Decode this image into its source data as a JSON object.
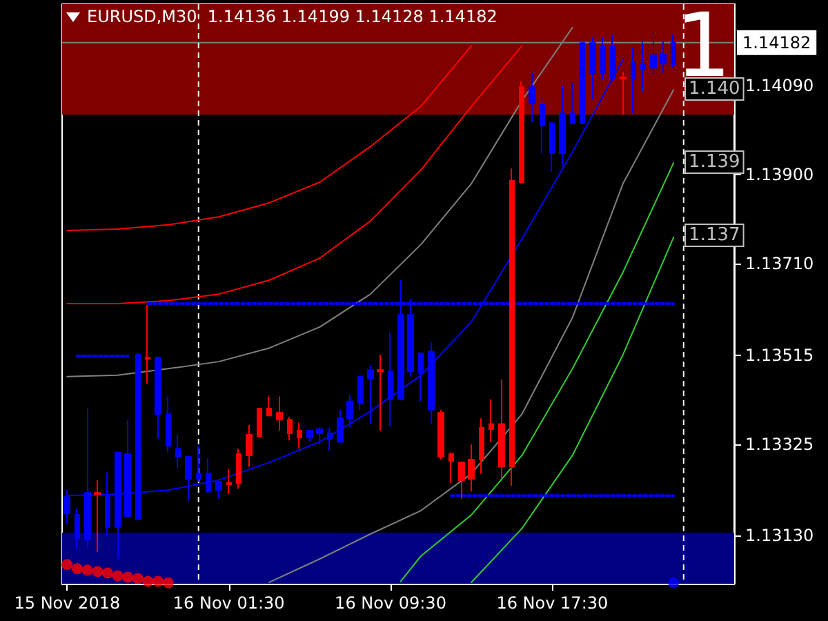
{
  "chart_data": {
    "type": "candlestick",
    "title": "EURUSD,M30  1.14136 1.14199 1.14128 1.14182",
    "x": [
      "2018-11-15T17:30",
      "2018-11-15T18:00",
      "2018-11-15T18:30",
      "2018-11-15T19:00",
      "2018-11-15T19:30",
      "2018-11-15T20:00",
      "2018-11-15T20:30",
      "2018-11-15T21:00",
      "2018-11-15T21:30",
      "2018-11-15T22:00",
      "2018-11-15T22:30",
      "2018-11-15T23:00",
      "2018-11-15T23:30",
      "2018-11-16T00:00",
      "2018-11-16T00:30",
      "2018-11-16T01:00",
      "2018-11-16T01:30",
      "2018-11-16T02:00",
      "2018-11-16T02:30",
      "2018-11-16T03:00",
      "2018-11-16T03:30",
      "2018-11-16T04:00",
      "2018-11-16T04:30",
      "2018-11-16T05:00",
      "2018-11-16T05:30",
      "2018-11-16T06:00",
      "2018-11-16T06:30",
      "2018-11-16T07:00",
      "2018-11-16T07:30",
      "2018-11-16T08:00",
      "2018-11-16T08:30",
      "2018-11-16T09:00",
      "2018-11-16T09:30",
      "2018-11-16T10:00",
      "2018-11-16T10:30",
      "2018-11-16T11:00",
      "2018-11-16T11:30",
      "2018-11-16T12:00",
      "2018-11-16T12:30",
      "2018-11-16T13:00",
      "2018-11-16T13:30",
      "2018-11-16T14:00",
      "2018-11-16T14:30",
      "2018-11-16T15:00",
      "2018-11-16T15:30",
      "2018-11-16T16:00",
      "2018-11-16T16:30",
      "2018-11-16T17:00",
      "2018-11-16T17:30",
      "2018-11-16T18:00",
      "2018-11-16T18:30",
      "2018-11-16T19:00",
      "2018-11-16T19:30",
      "2018-11-16T20:00",
      "2018-11-16T20:30",
      "2018-11-16T21:00",
      "2018-11-16T21:30",
      "2018-11-16T22:00",
      "2018-11-16T22:30",
      "2018-11-16T23:00",
      "2018-11-16T23:30"
    ],
    "ohlc": [
      [
        1.13177,
        1.13227,
        1.13154,
        1.13212
      ],
      [
        1.13124,
        1.13189,
        1.131,
        1.13174
      ],
      [
        1.13121,
        1.13401,
        1.13103,
        1.13221
      ],
      [
        1.13221,
        1.13248,
        1.13095,
        1.13218
      ],
      [
        1.13148,
        1.13265,
        1.1313,
        1.13215
      ],
      [
        1.13148,
        1.13307,
        1.1308,
        1.13307
      ],
      [
        1.13171,
        1.13377,
        1.13168,
        1.13304
      ],
      [
        1.13165,
        1.13519,
        1.13162,
        1.13516
      ],
      [
        1.1351,
        1.13622,
        1.13454,
        1.13507
      ],
      [
        1.13389,
        1.1351,
        1.13336,
        1.1351
      ],
      [
        1.13321,
        1.13427,
        1.13307,
        1.13389
      ],
      [
        1.13298,
        1.13345,
        1.13274,
        1.13315
      ],
      [
        1.13251,
        1.13298,
        1.13204,
        1.13298
      ],
      [
        1.13251,
        1.13321,
        1.13245,
        1.13262
      ],
      [
        1.13224,
        1.13295,
        1.13221,
        1.13262
      ],
      [
        1.13227,
        1.13245,
        1.13209,
        1.13245
      ],
      [
        1.13242,
        1.13271,
        1.13218,
        1.13239
      ],
      [
        1.13304,
        1.13315,
        1.1323,
        1.13242
      ],
      [
        1.13345,
        1.13366,
        1.13277,
        1.13301
      ],
      [
        1.13401,
        1.13401,
        1.13342,
        1.13342
      ],
      [
        1.13401,
        1.13427,
        1.13386,
        1.13386
      ],
      [
        1.13392,
        1.13427,
        1.13354,
        1.13377
      ],
      [
        1.13377,
        1.13383,
        1.13333,
        1.13348
      ],
      [
        1.13354,
        1.13371,
        1.13315,
        1.13339
      ],
      [
        1.13339,
        1.13354,
        1.1333,
        1.13354
      ],
      [
        1.13348,
        1.1336,
        1.13324,
        1.13357
      ],
      [
        1.13336,
        1.1336,
        1.1331,
        1.13348
      ],
      [
        1.1333,
        1.13398,
        1.13327,
        1.1338
      ],
      [
        1.1338,
        1.1343,
        1.1336,
        1.13416
      ],
      [
        1.13413,
        1.13469,
        1.13398,
        1.13469
      ],
      [
        1.13466,
        1.13492,
        1.13368,
        1.13483
      ],
      [
        1.13483,
        1.13516,
        1.13354,
        1.1348
      ],
      [
        1.13421,
        1.13563,
        1.13363,
        1.1348
      ],
      [
        1.13421,
        1.13675,
        1.13419,
        1.13601
      ],
      [
        1.1348,
        1.13634,
        1.13469,
        1.13601
      ],
      [
        1.13477,
        1.13519,
        1.13416,
        1.13519
      ],
      [
        1.13398,
        1.13542,
        1.13368,
        1.13522
      ],
      [
        1.13392,
        1.13398,
        1.13292,
        1.13298
      ],
      [
        1.13304,
        1.13307,
        1.13242,
        1.13289
      ],
      [
        1.13286,
        1.13286,
        1.13209,
        1.13248
      ],
      [
        1.13292,
        1.13324,
        1.13224,
        1.13251
      ],
      [
        1.1336,
        1.1338,
        1.13262,
        1.13292
      ],
      [
        1.13368,
        1.13421,
        1.1333,
        1.13357
      ],
      [
        1.13368,
        1.13463,
        1.13251,
        1.13277
      ],
      [
        1.13887,
        1.13913,
        1.13236,
        1.13277
      ],
      [
        1.14087,
        1.14099,
        1.13881,
        1.13884
      ],
      [
        1.14052,
        1.14117,
        1.14013,
        1.14087
      ],
      [
        1.14005,
        1.14061,
        1.13946,
        1.14049
      ],
      [
        1.13946,
        1.1401,
        1.13907,
        1.1401
      ],
      [
        1.13946,
        1.1409,
        1.13919,
        1.14031
      ],
      [
        1.1401,
        1.14096,
        1.14008,
        1.14031
      ],
      [
        1.1401,
        1.14181,
        1.14008,
        1.14181
      ],
      [
        1.14117,
        1.14193,
        1.14061,
        1.14181
      ],
      [
        1.14117,
        1.14193,
        1.14102,
        1.14175
      ],
      [
        1.14105,
        1.14199,
        1.14099,
        1.14175
      ],
      [
        1.14108,
        1.14119,
        1.14028,
        1.14105
      ],
      [
        1.14105,
        1.1417,
        1.14031,
        1.1414
      ],
      [
        1.14125,
        1.14184,
        1.14078,
        1.14137
      ],
      [
        1.14128,
        1.14199,
        1.14117,
        1.14155
      ],
      [
        1.14137,
        1.14184,
        1.14117,
        1.14158
      ],
      [
        1.14136,
        1.14199,
        1.14128,
        1.14182
      ]
    ],
    "colors": [
      "#0000ff",
      "#0000ff",
      "#0000ff",
      "#ff0000",
      "#0000ff",
      "#0000ff",
      "#0000ff",
      "#0000ff",
      "#ff0000",
      "#0000ff",
      "#0000ff",
      "#0000ff",
      "#0000ff",
      "#0000ff",
      "#0000ff",
      "#0000ff",
      "#ff0000",
      "#ff0000",
      "#ff0000",
      "#ff0000",
      "#ff0000",
      "#ff0000",
      "#ff0000",
      "#ff0000",
      "#0000ff",
      "#0000ff",
      "#0000ff",
      "#0000ff",
      "#0000ff",
      "#0000ff",
      "#0000ff",
      "#ff0000",
      "#0000ff",
      "#0000ff",
      "#0000ff",
      "#0000ff",
      "#0000ff",
      "#ff0000",
      "#ff0000",
      "#ff0000",
      "#ff0000",
      "#ff0000",
      "#ff0000",
      "#ff0000",
      "#ff0000",
      "#ff0000",
      "#0000ff",
      "#0000ff",
      "#0000ff",
      "#0000ff",
      "#0000ff",
      "#0000ff",
      "#0000ff",
      "#0000ff",
      "#0000ff",
      "#ff0000",
      "#0000ff",
      "#0000ff",
      "#0000ff",
      "#0000ff",
      "#0000ff"
    ],
    "series": [
      {
        "type": "line",
        "color": "#ff0000",
        "marker": "none",
        "line_style": "solid",
        "x": [
          "2018-11-15T17:30",
          "2018-11-15T20:00",
          "2018-11-15T22:30",
          "2018-11-16T01:00",
          "2018-11-16T03:30",
          "2018-11-16T06:00",
          "2018-11-16T08:30",
          "2018-11-16T11:00",
          "2018-11-16T13:30"
        ],
        "values": [
          1.13781,
          1.13784,
          1.13793,
          1.1381,
          1.1384,
          1.13884,
          1.1396,
          1.14046,
          1.14175
        ]
      },
      {
        "type": "line",
        "color": "#ff0000",
        "marker": "none",
        "line_style": "solid",
        "x": [
          "2018-11-15T17:30",
          "2018-11-15T20:00",
          "2018-11-15T22:30",
          "2018-11-16T01:00",
          "2018-11-16T03:30",
          "2018-11-16T06:00",
          "2018-11-16T08:30",
          "2018-11-16T11:00",
          "2018-11-16T13:30",
          "2018-11-16T16:00"
        ],
        "values": [
          1.13625,
          1.13625,
          1.13631,
          1.13645,
          1.13675,
          1.13722,
          1.13801,
          1.1391,
          1.14046,
          1.14175
        ]
      },
      {
        "type": "line",
        "color": "#808080",
        "marker": "none",
        "line_style": "solid",
        "x": [
          "2018-11-15T17:30",
          "2018-11-15T20:00",
          "2018-11-15T22:30",
          "2018-11-16T01:00",
          "2018-11-16T03:30",
          "2018-11-16T06:00",
          "2018-11-16T08:30",
          "2018-11-16T11:00",
          "2018-11-16T13:30",
          "2018-11-16T16:00",
          "2018-11-16T18:30"
        ],
        "values": [
          1.13469,
          1.13472,
          1.13486,
          1.13501,
          1.1353,
          1.13575,
          1.13645,
          1.13751,
          1.13881,
          1.14058,
          1.14214
        ]
      },
      {
        "type": "line",
        "color": "#808080",
        "marker": "none",
        "line_style": "solid",
        "x": [
          "2018-11-16T03:30",
          "2018-11-16T06:00",
          "2018-11-16T08:30",
          "2018-11-16T11:00",
          "2018-11-16T13:30",
          "2018-11-16T16:00",
          "2018-11-16T18:30",
          "2018-11-16T21:00",
          "2018-11-16T23:30"
        ],
        "values": [
          1.1303,
          1.1308,
          1.13133,
          1.13183,
          1.13262,
          1.13389,
          1.13595,
          1.13881,
          1.14081
        ]
      },
      {
        "type": "line",
        "color": "#32cd32",
        "marker": "none",
        "line_style": "solid",
        "x": [
          "2018-11-16T10:00",
          "2018-11-16T11:00",
          "2018-11-16T13:30",
          "2018-11-16T16:00",
          "2018-11-16T18:30",
          "2018-11-16T21:00",
          "2018-11-16T23:30"
        ],
        "values": [
          1.13032,
          1.13086,
          1.13174,
          1.13301,
          1.13486,
          1.13692,
          1.13925
        ]
      },
      {
        "type": "line",
        "color": "#32cd32",
        "marker": "none",
        "line_style": "solid",
        "x": [
          "2018-11-16T13:30",
          "2018-11-16T16:00",
          "2018-11-16T18:30",
          "2018-11-16T21:00",
          "2018-11-16T23:30"
        ],
        "values": [
          1.1303,
          1.13145,
          1.13301,
          1.13516,
          1.13766
        ]
      },
      {
        "type": "line",
        "color": "#0000ff",
        "marker": "none",
        "line_style": "solid",
        "x": [
          "2018-11-15T17:30",
          "2018-11-15T20:00",
          "2018-11-15T22:30",
          "2018-11-16T01:00",
          "2018-11-16T03:30",
          "2018-11-16T06:00",
          "2018-11-16T08:30",
          "2018-11-16T11:00",
          "2018-11-16T13:30",
          "2018-11-16T16:00",
          "2018-11-16T18:30",
          "2018-11-16T21:00"
        ],
        "values": [
          1.13215,
          1.13218,
          1.13227,
          1.13248,
          1.13286,
          1.1333,
          1.13395,
          1.13472,
          1.13586,
          1.13763,
          1.13949,
          1.14146
        ]
      },
      {
        "type": "line",
        "color": "#0000ff",
        "marker": "none",
        "line_style": "dotted",
        "x": [
          "2018-11-15T21:30",
          "2018-11-16T23:30"
        ],
        "values": [
          1.13625,
          1.13625
        ]
      },
      {
        "type": "line",
        "color": "#0000ff",
        "marker": "none",
        "line_style": "dotted",
        "x": [
          "2018-11-16T12:30",
          "2018-11-16T23:30"
        ],
        "values": [
          1.13215,
          1.13215
        ]
      },
      {
        "type": "line",
        "color": "#0000ff",
        "marker": "none",
        "line_style": "dotted",
        "x": [
          "2018-11-15T18:00",
          "2018-11-15T20:30"
        ],
        "values": [
          1.13513,
          1.13513
        ]
      },
      {
        "type": "scatter",
        "color": "#ff0000",
        "marker": "circle",
        "x": [
          "2018-11-15T17:30",
          "2018-11-15T18:00",
          "2018-11-15T18:30",
          "2018-11-15T19:00",
          "2018-11-15T19:30",
          "2018-11-15T20:00",
          "2018-11-15T20:30",
          "2018-11-15T21:00",
          "2018-11-15T21:30",
          "2018-11-15T22:00",
          "2018-11-15T22:30"
        ],
        "values": [
          1.13068,
          1.13059,
          1.13056,
          1.13053,
          1.1305,
          1.13044,
          1.13041,
          1.13038,
          1.13032,
          1.13032,
          1.13029
        ]
      },
      {
        "type": "scatter",
        "color": "#0000ff",
        "marker": "circle",
        "x": [
          "2018-11-16T23:30"
        ],
        "values": [
          1.13029
        ]
      }
    ],
    "xlim": [
      "2018-11-15T17:15",
      "2018-11-17T02:30"
    ],
    "xticks": [
      {
        "value": "2018-11-15T17:30",
        "label": "15 Nov 2018"
      },
      {
        "value": "2018-11-16T01:30",
        "label": "16 Nov 01:30"
      },
      {
        "value": "2018-11-16T09:30",
        "label": "16 Nov 09:30"
      },
      {
        "value": "2018-11-16T17:30",
        "label": "16 Nov 17:30"
      }
    ],
    "ylim": [
      1.13027,
      1.14264
    ],
    "yticks": [
      {
        "value": 1.1313,
        "label": "1.13130"
      },
      {
        "value": 1.13325,
        "label": "1.13325"
      },
      {
        "value": 1.13515,
        "label": "1.13515"
      },
      {
        "value": 1.1371,
        "label": "1.13710"
      },
      {
        "value": 1.139,
        "label": "1.13900"
      },
      {
        "value": 1.1409,
        "label": "1.14090"
      }
    ],
    "ref_lines": [
      {
        "axis": "y",
        "value": 1.14182,
        "label": "1.14182",
        "color": "#808080",
        "line_style": "solid"
      },
      {
        "axis": "x",
        "value": "2018-11-16T00:00",
        "color": "#ffffff",
        "line_style": "dashed"
      },
      {
        "axis": "x",
        "value": "2018-11-17T00:00",
        "color": "#ffffff",
        "line_style": "dashed"
      }
    ],
    "bands": [
      {
        "axis": "y",
        "from": 1.14028,
        "to": 1.14264,
        "color": "#800000"
      },
      {
        "axis": "y",
        "from": 1.13027,
        "to": 1.13136,
        "color": "#000080"
      }
    ],
    "annotations": [
      "1",
      "1.140",
      "1.139",
      "1.137"
    ],
    "grid": false
  }
}
